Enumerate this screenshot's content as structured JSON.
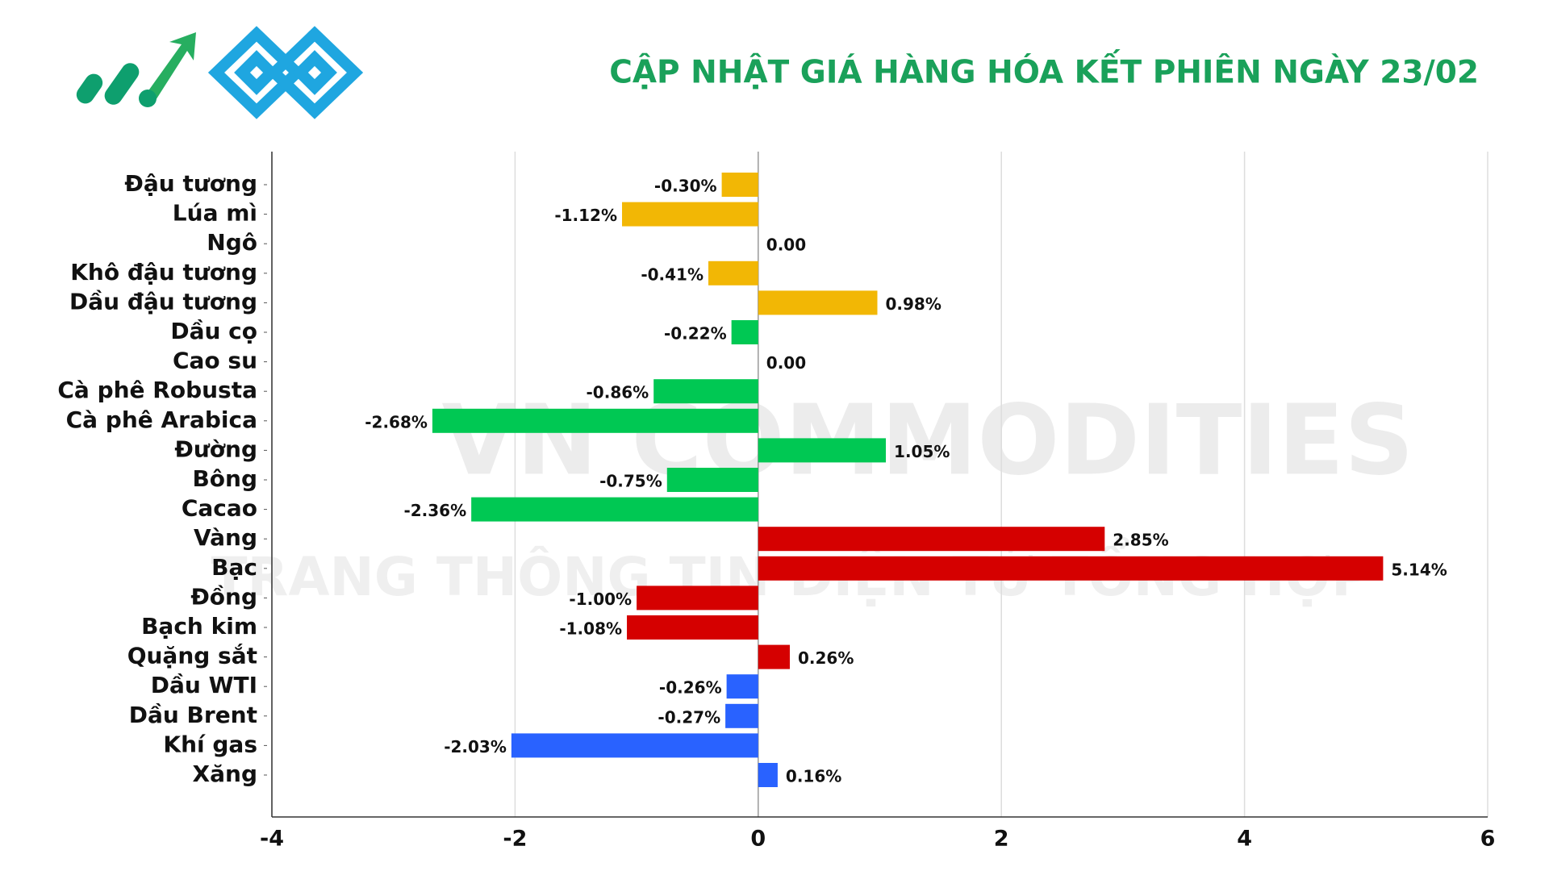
{
  "chart_data": {
    "type": "barh",
    "title": "CẬP NHẬT GIÁ HÀNG HÓA KẾT PHIÊN NGÀY 23/02",
    "watermark": "VN COMMODITIES",
    "watermark_subtitle": "TRANG THÔNG TIN ĐIỆN TỬ TỔNG HỢP",
    "categories": [
      "Đậu tương",
      "Lúa mì",
      "Ngô",
      "Khô đậu tương",
      "Dầu đậu tương",
      "Dầu cọ",
      "Cao su",
      "Cà phê Robusta",
      "Cà phê Arabica",
      "Đường",
      "Bông",
      "Cacao",
      "Vàng",
      "Bạc",
      "Đồng",
      "Bạch kim",
      "Quặng sắt",
      "Dầu WTI",
      "Dầu Brent",
      "Khí gas",
      "Xăng"
    ],
    "values": [
      -0.3,
      -1.12,
      0.0,
      -0.41,
      0.98,
      -0.22,
      0.0,
      -0.86,
      -2.68,
      1.05,
      -0.75,
      -2.36,
      2.85,
      5.14,
      -1.0,
      -1.08,
      0.26,
      -0.26,
      -0.27,
      -2.03,
      0.16
    ],
    "value_labels": [
      "-0.30%",
      "-1.12%",
      "0.00",
      "-0.41%",
      "0.98%",
      "-0.22%",
      "0.00",
      "-0.86%",
      "-2.68%",
      "1.05%",
      "-0.75%",
      "-2.36%",
      "2.85%",
      "5.14%",
      "-1.00%",
      "-1.08%",
      "0.26%",
      "-0.26%",
      "-0.27%",
      "-2.03%",
      "0.16%"
    ],
    "colors": [
      "#f2b705",
      "#f2b705",
      "#f2b705",
      "#f2b705",
      "#f2b705",
      "#00c853",
      "#00c853",
      "#00c853",
      "#00c853",
      "#00c853",
      "#00c853",
      "#00c853",
      "#d50000",
      "#d50000",
      "#d50000",
      "#d50000",
      "#d50000",
      "#2962ff",
      "#2962ff",
      "#2962ff",
      "#2962ff"
    ],
    "xlim": [
      -4,
      6
    ],
    "xticks": [
      -4,
      -2,
      0,
      2,
      4,
      6
    ],
    "grid": true
  }
}
